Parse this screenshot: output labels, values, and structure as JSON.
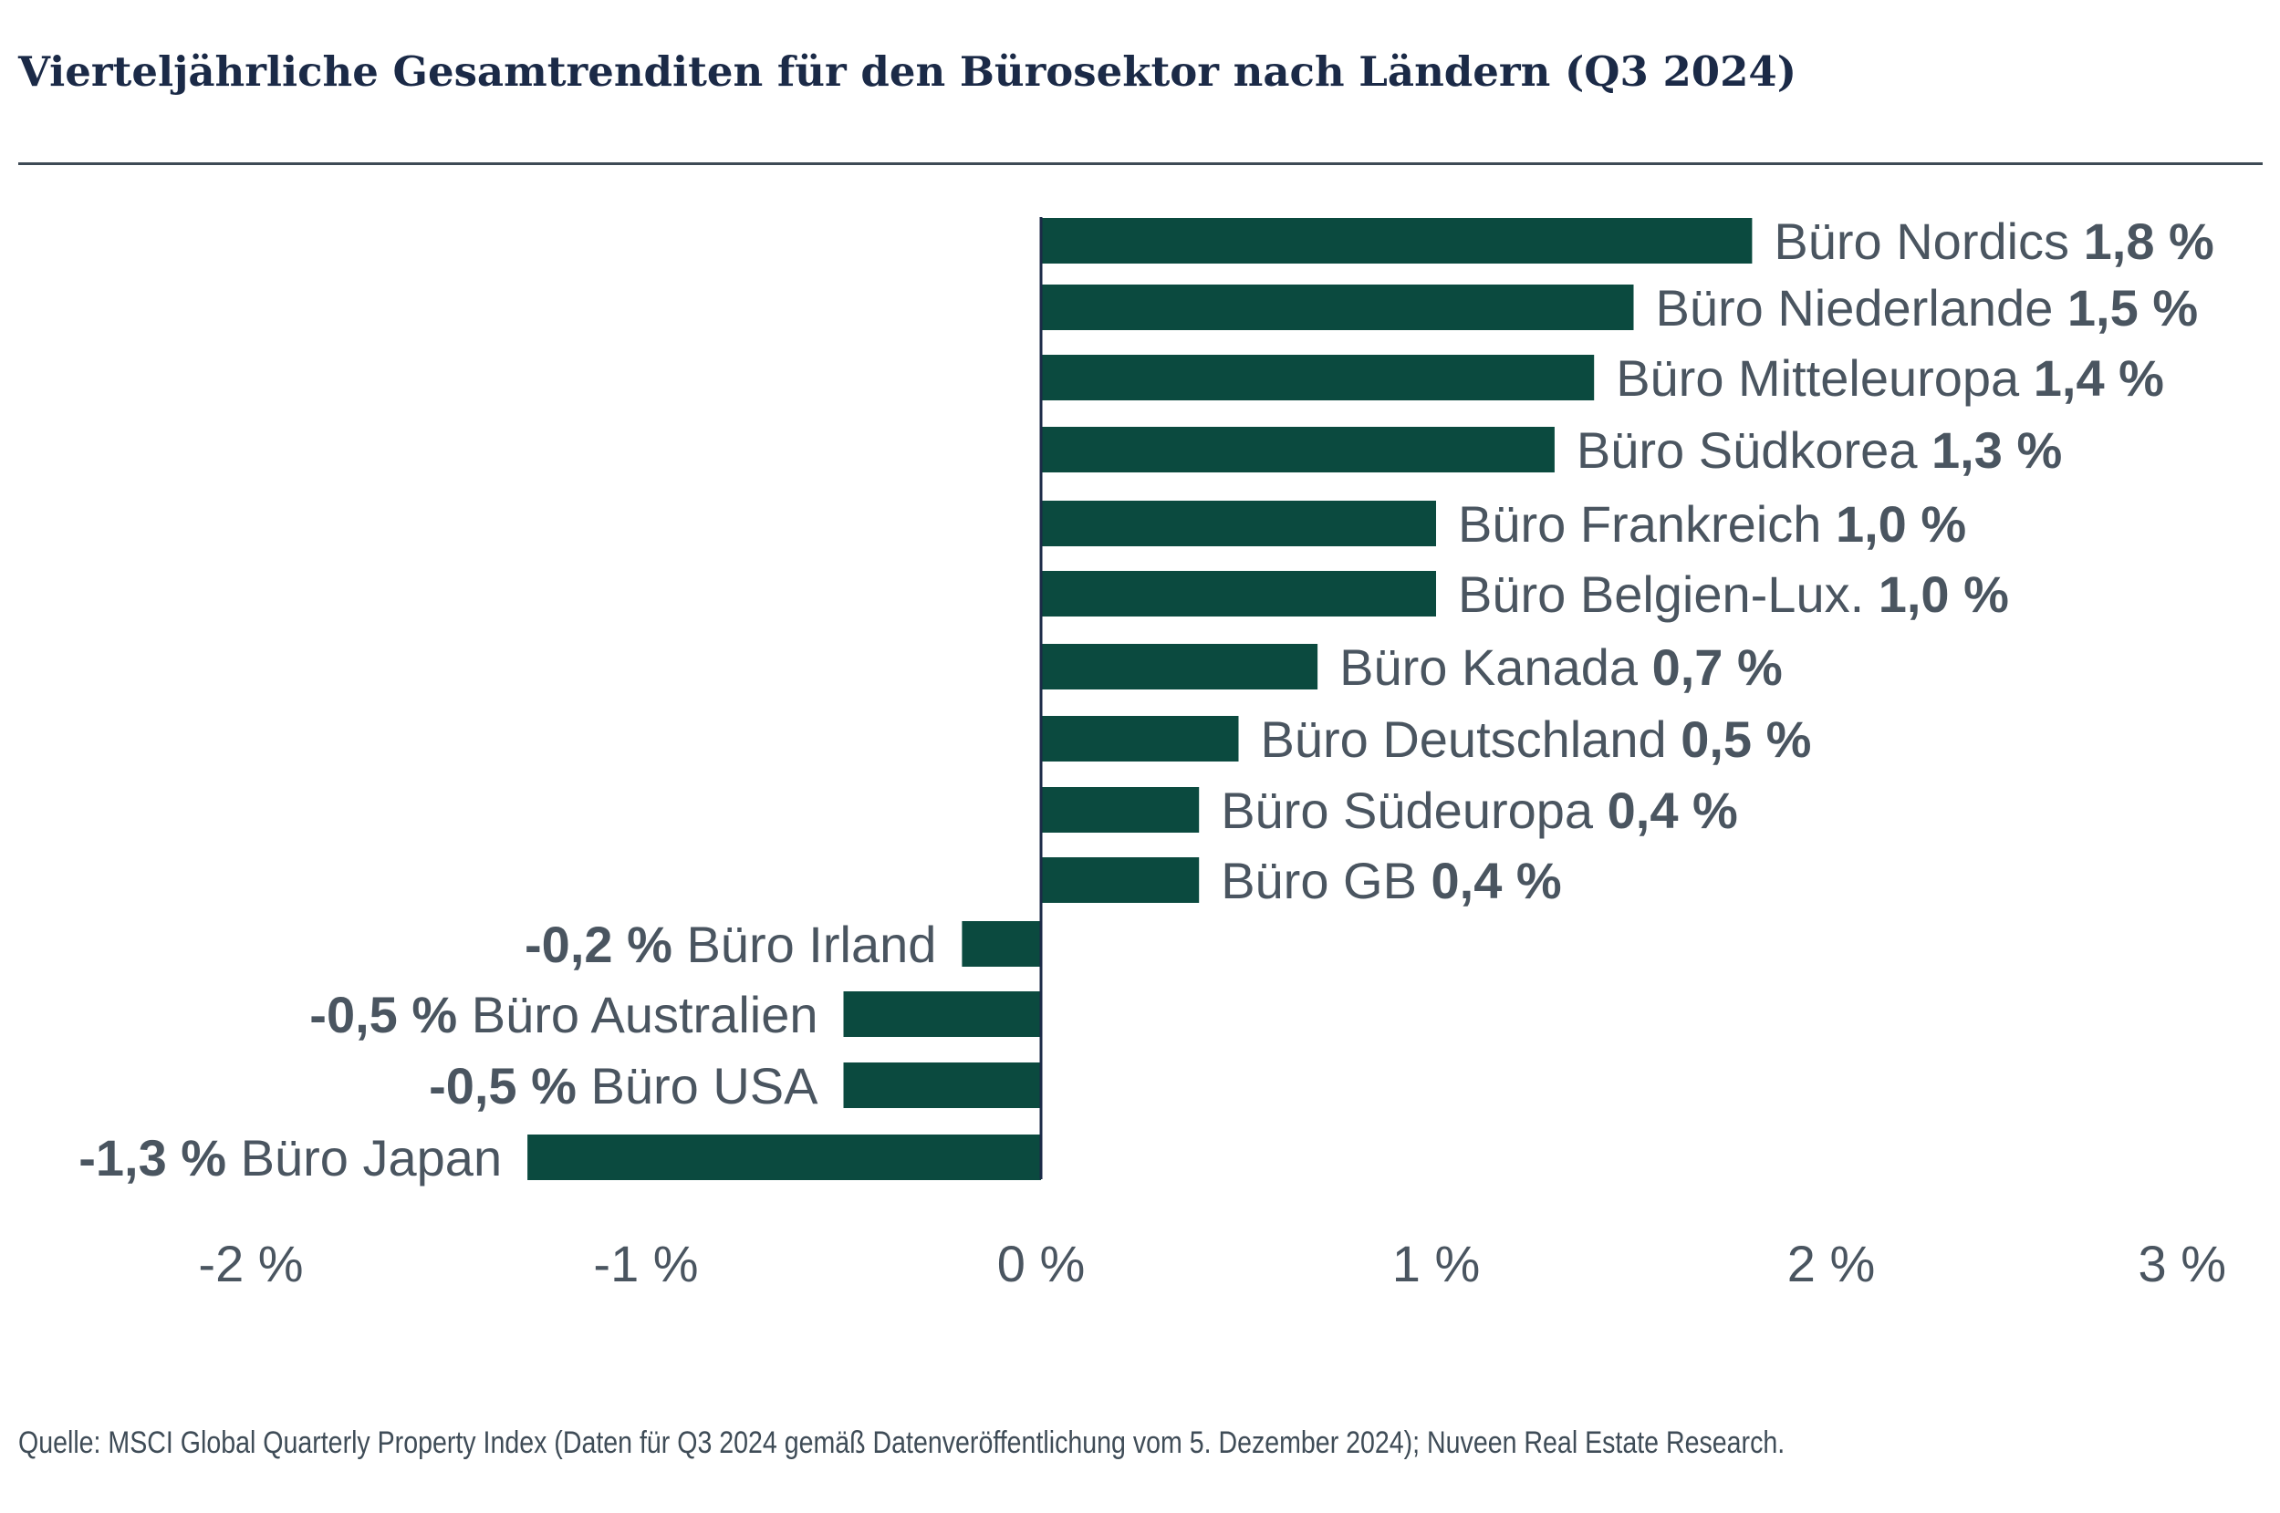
{
  "title": "Vierteljährliche Gesamtrenditen für den Bürosektor nach Ländern (Q3 2024)",
  "source": "Quelle: MSCI Global Quarterly Property Index (Daten für Q3 2024 gemäß Datenveröffentlichung vom 5. Dezember 2024); Nuveen Real Estate Research.",
  "colors": {
    "bar": "#0b4a3f",
    "text": "#4a5560",
    "axis": "#1b2a47",
    "title": "#1b2a47"
  },
  "chart_data": {
    "type": "bar",
    "orientation": "horizontal",
    "title": "Vierteljährliche Gesamtrenditen für den Bürosektor nach Ländern (Q3 2024)",
    "xlabel": "",
    "ylabel": "",
    "xlim": [
      -2,
      3
    ],
    "grid": false,
    "legend": "none",
    "ticks": [
      -2,
      -1,
      0,
      1,
      2,
      3
    ],
    "tick_labels": [
      "-2 %",
      "-1 %",
      "0 %",
      "1 %",
      "2 %",
      "3 %"
    ],
    "categories": [
      "Büro Nordics",
      "Büro Niederlande",
      "Büro Mitteleuropa",
      "Büro Südkorea",
      "Büro Frankreich",
      "Büro Belgien-Lux.",
      "Büro Kanada",
      "Büro Deutschland",
      "Büro Südeuropa",
      "Büro GB",
      "Büro Irland",
      "Büro Australien",
      "Büro USA",
      "Büro Japan"
    ],
    "values": [
      1.8,
      1.5,
      1.4,
      1.3,
      1.0,
      1.0,
      0.7,
      0.5,
      0.4,
      0.4,
      -0.2,
      -0.5,
      -0.5,
      -1.3
    ],
    "value_labels": [
      "1,8 %",
      "1,5 %",
      "1,4 %",
      "1,3 %",
      "1,0 %",
      "1,0 %",
      "0,7 %",
      "0,5 %",
      "0,4 %",
      "0,4 %",
      "-0,2 %",
      "-0,5 %",
      "-0,5 %",
      "-1,3 %"
    ]
  }
}
